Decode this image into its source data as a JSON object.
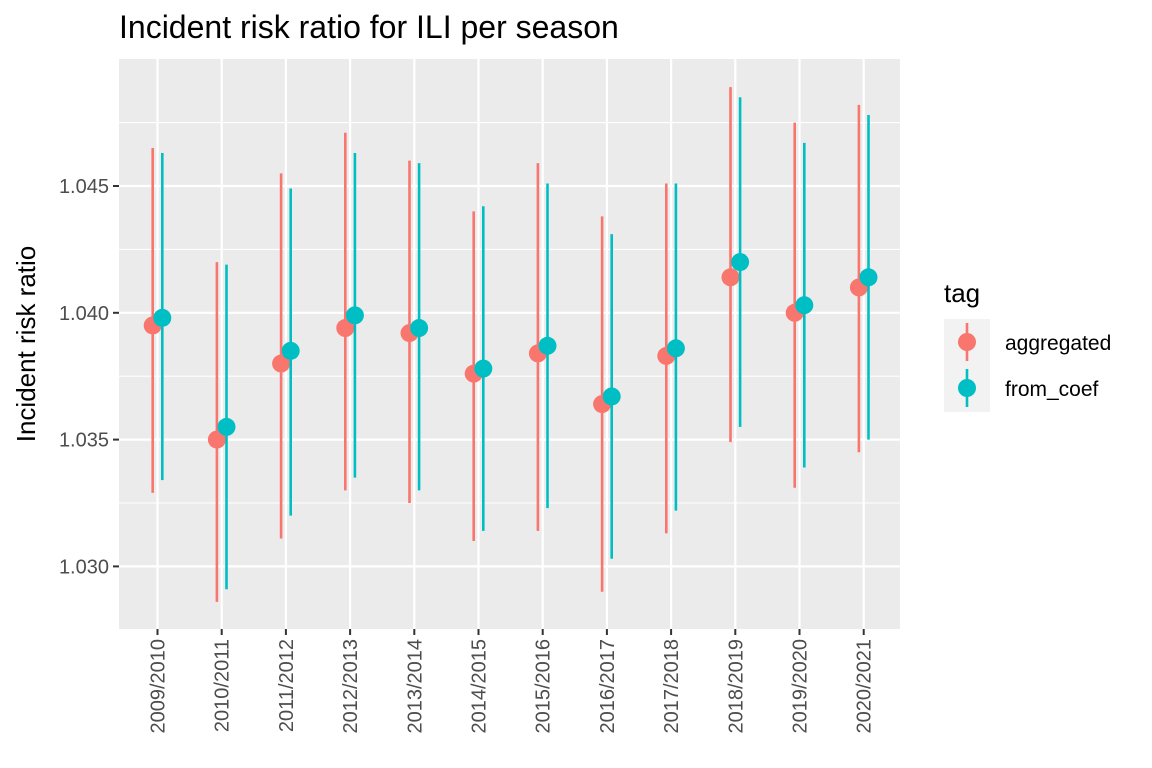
{
  "chart_data": {
    "type": "scatter",
    "subtype": "pointrange",
    "title": "Incident risk ratio for ILI per season",
    "xlabel": "",
    "ylabel": "Incident risk ratio",
    "categories": [
      "2009/2010",
      "2010/2011",
      "2011/2012",
      "2012/2013",
      "2013/2014",
      "2014/2015",
      "2015/2016",
      "2016/2017",
      "2017/2018",
      "2018/2019",
      "2019/2020",
      "2020/2021"
    ],
    "yticks": [
      1.03,
      1.035,
      1.04,
      1.045
    ],
    "ytick_labels": [
      "1.030",
      "1.035",
      "1.040",
      "1.045"
    ],
    "ylim": [
      1.0275,
      1.05
    ],
    "grid": true,
    "legend": {
      "title": "tag",
      "position": "right"
    },
    "series": [
      {
        "name": "aggregated",
        "color": "#F8766D",
        "values": [
          1.0395,
          1.035,
          1.038,
          1.0394,
          1.0392,
          1.0376,
          1.0384,
          1.0364,
          1.0383,
          1.0414,
          1.04,
          1.041
        ],
        "lower": [
          1.0329,
          1.0286,
          1.0311,
          1.033,
          1.0325,
          1.031,
          1.0314,
          1.029,
          1.0313,
          1.0349,
          1.0331,
          1.0345
        ],
        "upper": [
          1.0465,
          1.042,
          1.0455,
          1.0471,
          1.046,
          1.044,
          1.0459,
          1.0438,
          1.0451,
          1.0489,
          1.0475,
          1.0482
        ]
      },
      {
        "name": "from_coef",
        "color": "#00BFC4",
        "values": [
          1.0398,
          1.0355,
          1.0385,
          1.0399,
          1.0394,
          1.0378,
          1.0387,
          1.0367,
          1.0386,
          1.042,
          1.0403,
          1.0414
        ],
        "lower": [
          1.0334,
          1.0291,
          1.032,
          1.0335,
          1.033,
          1.0314,
          1.0323,
          1.0303,
          1.0322,
          1.0355,
          1.0339,
          1.035
        ],
        "upper": [
          1.0463,
          1.0419,
          1.0449,
          1.0463,
          1.0459,
          1.0442,
          1.0451,
          1.0431,
          1.0451,
          1.0485,
          1.0467,
          1.0478
        ]
      }
    ]
  }
}
